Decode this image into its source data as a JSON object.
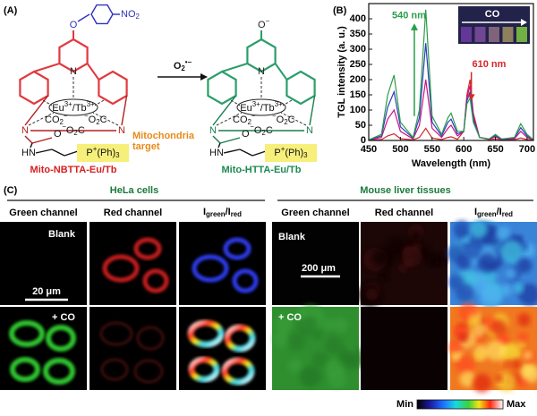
{
  "panels": {
    "a": "(A)",
    "b": "(B)",
    "c": "(C)"
  },
  "panel_a": {
    "nitro": [
      "NO",
      "2"
    ],
    "oxygen": "O",
    "oxide": [
      "O",
      "−"
    ],
    "reagent": [
      "O",
      "2",
      "•−"
    ],
    "metal": [
      "Eu",
      "3+",
      "/Tb",
      "3+"
    ],
    "nitrogen": "N",
    "amine": "HN",
    "phosphonium": [
      "P",
      "+",
      "(Ph)",
      "3"
    ],
    "carboxylate": [
      "CO",
      "2",
      "−"
    ],
    "carboxylate_rev": [
      "−",
      "O",
      "2",
      "C"
    ],
    "target": [
      "Mitochondria",
      "target"
    ],
    "probe": "Mito-NBTTA-Eu/Tb",
    "product": "Mito-HTTA-Eu/Tb"
  },
  "chart_data": {
    "type": "line",
    "xlabel": "Wavelength (nm)",
    "ylabel": "TGL intensity (a. u.)",
    "xlim": [
      450,
      710
    ],
    "ylim": [
      0,
      450
    ],
    "xticks": [
      450,
      500,
      550,
      600,
      650,
      700
    ],
    "yticks": [
      0,
      50,
      100,
      150,
      200,
      250,
      300,
      350,
      400
    ],
    "annotations": [
      "540 nm",
      "610 nm"
    ],
    "inset_label": "CO",
    "x": [
      450,
      470,
      480,
      490,
      500,
      520,
      530,
      540,
      550,
      565,
      575,
      580,
      590,
      600,
      605,
      610,
      615,
      625,
      640,
      650,
      660,
      680,
      690,
      700,
      710
    ],
    "series": [
      {
        "color": "#d62728",
        "values": [
          1,
          3,
          15,
          22,
          6,
          2,
          10,
          40,
          8,
          3,
          10,
          12,
          4,
          30,
          150,
          200,
          90,
          10,
          3,
          5,
          2,
          3,
          8,
          3,
          1
        ]
      },
      {
        "color": "#c71585",
        "values": [
          1,
          10,
          70,
          100,
          30,
          5,
          50,
          200,
          40,
          10,
          40,
          50,
          15,
          30,
          140,
          180,
          80,
          10,
          4,
          12,
          3,
          6,
          30,
          10,
          1
        ]
      },
      {
        "color": "#2f3fbf",
        "values": [
          2,
          15,
          110,
          160,
          45,
          8,
          75,
          320,
          60,
          15,
          60,
          70,
          22,
          30,
          130,
          160,
          70,
          10,
          5,
          16,
          4,
          8,
          42,
          15,
          2
        ]
      },
      {
        "color": "#2a9d4a",
        "values": [
          2,
          20,
          150,
          215,
          60,
          10,
          100,
          430,
          80,
          20,
          75,
          90,
          30,
          30,
          120,
          140,
          60,
          10,
          5,
          20,
          5,
          10,
          55,
          20,
          2
        ]
      }
    ]
  },
  "panel_c": {
    "groups": [
      "HeLa cells",
      "Mouse liver tissues"
    ],
    "channels": [
      "Green channel",
      "Red channel"
    ],
    "ratio": [
      "I",
      "green",
      "/I",
      "red"
    ],
    "conditions": [
      "Blank",
      "+ CO"
    ],
    "scale_bars": [
      "20 μm",
      "200 μm"
    ],
    "colorbar": [
      "Min",
      "Max"
    ]
  }
}
